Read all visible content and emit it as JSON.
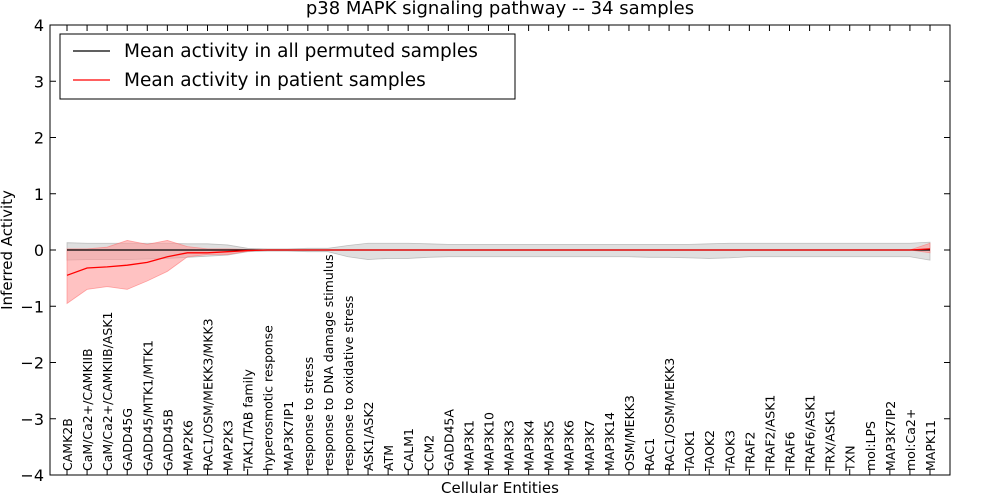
{
  "chart_data": {
    "type": "line",
    "title": "p38 MAPK signaling pathway -- 34 samples",
    "xlabel": "Cellular Entities",
    "ylabel": "Inferred Activity",
    "ylim": [
      -4,
      4
    ],
    "yticks": [
      "−4",
      "−3",
      "−2",
      "−1",
      "0",
      "1",
      "2",
      "3",
      "4"
    ],
    "grid": false,
    "legend_position": "top-left",
    "categories": [
      "CAMK2B",
      "CaM/Ca2+/CAMKIIB",
      "CaM/Ca2+/CAMKIIB/ASK1",
      "GADD45G",
      "GADD45/MTK1/MTK1",
      "GADD45B",
      "MAP2K6",
      "RAC1/OSM/MEKK3/MKK3",
      "MAP2K3",
      "TAK1/TAB family",
      "hyperosmotic response",
      "MAP3K7IP1",
      "response to stress",
      "response to DNA damage stimulus",
      "response to oxidative stress",
      "ASK1/ASK2",
      "ATM",
      "CALM1",
      "CCM2",
      "GADD45A",
      "MAP3K1",
      "MAP3K10",
      "MAP3K3",
      "MAP3K4",
      "MAP3K5",
      "MAP3K6",
      "MAP3K7",
      "MAP3K14",
      "OSM/MEKK3",
      "RAC1",
      "RAC1/OSM/MEKK3",
      "TAOK1",
      "TAOK2",
      "TAOK3",
      "TRAF2",
      "TRAF2/ASK1",
      "TRAF6",
      "TRAF6/ASK1",
      "TRX/ASK1",
      "TXN",
      "mol:LPS",
      "MAP3K7IP2",
      "mol:Ca2+",
      "MAPK11"
    ],
    "series": [
      {
        "name": "Mean activity in all permuted samples",
        "color": "#000000",
        "band_color": "#bfbfbf",
        "values": [
          0,
          0,
          0,
          0,
          0,
          0,
          0,
          0,
          0,
          0,
          0,
          0,
          0,
          0,
          0,
          0,
          0,
          0,
          0,
          0,
          0,
          0,
          0,
          0,
          0,
          0,
          0,
          0,
          0,
          0,
          0,
          0,
          0,
          0,
          0,
          0,
          0,
          0,
          0,
          0,
          0,
          0,
          0,
          0
        ],
        "lower": [
          -0.18,
          -0.17,
          -0.17,
          -0.17,
          -0.16,
          -0.15,
          -0.13,
          -0.11,
          -0.09,
          -0.03,
          -0.02,
          -0.02,
          -0.03,
          -0.03,
          -0.12,
          -0.17,
          -0.15,
          -0.15,
          -0.13,
          -0.12,
          -0.12,
          -0.12,
          -0.12,
          -0.12,
          -0.12,
          -0.12,
          -0.12,
          -0.12,
          -0.12,
          -0.13,
          -0.13,
          -0.14,
          -0.15,
          -0.14,
          -0.12,
          -0.12,
          -0.12,
          -0.12,
          -0.12,
          -0.12,
          -0.12,
          -0.12,
          -0.12,
          -0.18
        ],
        "upper": [
          0.13,
          0.12,
          0.12,
          0.12,
          0.12,
          0.12,
          0.11,
          0.11,
          0.09,
          0.03,
          0.02,
          0.02,
          0.03,
          0.03,
          0.08,
          0.12,
          0.12,
          0.12,
          0.11,
          0.1,
          0.1,
          0.1,
          0.1,
          0.1,
          0.1,
          0.1,
          0.1,
          0.1,
          0.1,
          0.1,
          0.1,
          0.1,
          0.11,
          0.12,
          0.12,
          0.12,
          0.12,
          0.12,
          0.12,
          0.12,
          0.12,
          0.12,
          0.12,
          0.14
        ]
      },
      {
        "name": "Mean activity in patient samples",
        "color": "#ff0000",
        "band_color": "#ff9999",
        "values": [
          -0.45,
          -0.32,
          -0.3,
          -0.27,
          -0.22,
          -0.12,
          -0.05,
          -0.05,
          -0.03,
          -0.01,
          0,
          0,
          0,
          0,
          0,
          0,
          0,
          0,
          0,
          0,
          0,
          0,
          0,
          0,
          0,
          0,
          0,
          0,
          0,
          0,
          0,
          0,
          0,
          0,
          0,
          0,
          0,
          0,
          0,
          0,
          0,
          0,
          0,
          0.02
        ],
        "lower": [
          -0.95,
          -0.7,
          -0.65,
          -0.7,
          -0.55,
          -0.38,
          -0.12,
          -0.08,
          -0.08,
          -0.02,
          0,
          0,
          0,
          0,
          0,
          0,
          0,
          0,
          0,
          0,
          0,
          0,
          0,
          0,
          0,
          0,
          0,
          0,
          0,
          0,
          0,
          0,
          0,
          0,
          0,
          0,
          0,
          0,
          0,
          0,
          0,
          0,
          0,
          -0.05
        ],
        "upper": [
          0.02,
          0.02,
          0.05,
          0.17,
          0.1,
          0.17,
          0.06,
          0.02,
          0.02,
          0.01,
          0,
          0,
          0,
          0,
          0,
          0,
          0,
          0,
          0,
          0,
          0,
          0,
          0,
          0,
          0,
          0,
          0,
          0,
          0,
          0,
          0,
          0,
          0,
          0,
          0,
          0,
          0,
          0,
          0,
          0,
          0,
          0,
          0,
          0.12
        ]
      }
    ]
  }
}
